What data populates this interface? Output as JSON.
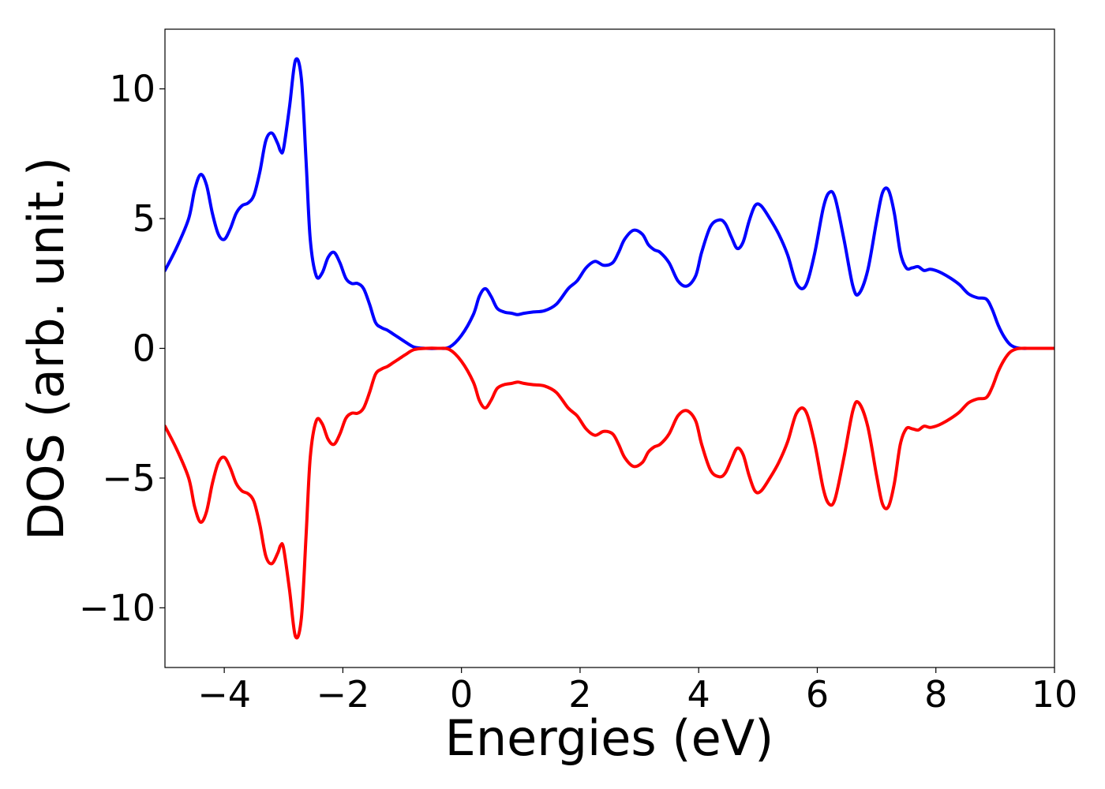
{
  "chart_data": {
    "type": "line",
    "xlabel": "Energies (eV)",
    "ylabel": "DOS (arb. unit.)",
    "xlim": [
      -5,
      10
    ],
    "ylim": [
      -12.3,
      12.3
    ],
    "xticks": [
      -4,
      -2,
      0,
      2,
      4,
      6,
      8,
      10
    ],
    "xtick_labels": [
      "−4",
      "−2",
      "0",
      "2",
      "4",
      "6",
      "8",
      "10"
    ],
    "yticks": [
      -10,
      -5,
      0,
      5,
      10
    ],
    "ytick_labels": [
      "−10",
      "−5",
      "0",
      "5",
      "10"
    ],
    "grid": false,
    "series": [
      {
        "color": "#0000ff",
        "x": [
          -5.0,
          -4.8,
          -4.6,
          -4.5,
          -4.4,
          -4.3,
          -4.2,
          -4.1,
          -4.0,
          -3.9,
          -3.8,
          -3.7,
          -3.6,
          -3.5,
          -3.4,
          -3.3,
          -3.2,
          -3.1,
          -3.05,
          -3.0,
          -2.9,
          -2.8,
          -2.7,
          -2.62,
          -2.55,
          -2.45,
          -2.35,
          -2.25,
          -2.15,
          -2.05,
          -1.95,
          -1.85,
          -1.75,
          -1.65,
          -1.55,
          -1.45,
          -1.35,
          -1.25,
          -1.15,
          -1.05,
          -0.95,
          -0.8,
          -0.6,
          -0.4,
          -0.2,
          0.0,
          0.2,
          0.3,
          0.4,
          0.5,
          0.6,
          0.72,
          0.85,
          0.95,
          1.05,
          1.2,
          1.4,
          1.6,
          1.8,
          1.95,
          2.1,
          2.25,
          2.4,
          2.55,
          2.65,
          2.75,
          2.9,
          3.05,
          3.15,
          3.25,
          3.35,
          3.5,
          3.65,
          3.8,
          3.95,
          4.05,
          4.2,
          4.35,
          4.45,
          4.55,
          4.65,
          4.75,
          4.85,
          4.95,
          5.05,
          5.2,
          5.35,
          5.5,
          5.65,
          5.8,
          5.95,
          6.1,
          6.2,
          6.3,
          6.45,
          6.6,
          6.7,
          6.85,
          7.0,
          7.1,
          7.2,
          7.3,
          7.4,
          7.5,
          7.6,
          7.7,
          7.8,
          7.9,
          8.0,
          8.1,
          8.25,
          8.4,
          8.55,
          8.7,
          8.85,
          8.95,
          9.05,
          9.15,
          9.25,
          9.35,
          9.45,
          9.6,
          9.8,
          10.0
        ],
        "y": [
          3.0,
          3.9,
          5.0,
          6.1,
          6.7,
          6.3,
          5.2,
          4.4,
          4.2,
          4.6,
          5.2,
          5.5,
          5.6,
          5.9,
          6.8,
          8.0,
          8.3,
          7.9,
          7.6,
          7.7,
          9.3,
          11.1,
          10.4,
          7.2,
          4.2,
          2.8,
          2.9,
          3.5,
          3.7,
          3.3,
          2.7,
          2.5,
          2.5,
          2.3,
          1.7,
          1.0,
          0.8,
          0.7,
          0.55,
          0.4,
          0.25,
          0.05,
          0.0,
          0.0,
          0.05,
          0.5,
          1.3,
          2.0,
          2.3,
          2.0,
          1.55,
          1.4,
          1.35,
          1.3,
          1.35,
          1.4,
          1.45,
          1.7,
          2.3,
          2.6,
          3.1,
          3.35,
          3.2,
          3.3,
          3.7,
          4.2,
          4.55,
          4.4,
          4.0,
          3.8,
          3.7,
          3.3,
          2.6,
          2.4,
          2.8,
          3.7,
          4.7,
          4.95,
          4.8,
          4.3,
          3.85,
          4.1,
          4.9,
          5.5,
          5.5,
          5.0,
          4.4,
          3.6,
          2.5,
          2.4,
          3.6,
          5.4,
          6.0,
          5.8,
          4.2,
          2.4,
          2.1,
          3.0,
          4.9,
          6.0,
          6.1,
          5.2,
          3.7,
          3.1,
          3.1,
          3.15,
          3.0,
          3.05,
          3.0,
          2.9,
          2.7,
          2.45,
          2.1,
          1.95,
          1.9,
          1.5,
          0.9,
          0.45,
          0.15,
          0.03,
          0.0,
          0.0,
          0.0,
          0.0
        ]
      },
      {
        "color": "#ff0000",
        "x": [
          -5.0,
          -4.8,
          -4.6,
          -4.5,
          -4.4,
          -4.3,
          -4.2,
          -4.1,
          -4.0,
          -3.9,
          -3.8,
          -3.7,
          -3.6,
          -3.5,
          -3.4,
          -3.3,
          -3.2,
          -3.1,
          -3.05,
          -3.0,
          -2.9,
          -2.8,
          -2.7,
          -2.62,
          -2.55,
          -2.45,
          -2.35,
          -2.25,
          -2.15,
          -2.05,
          -1.95,
          -1.85,
          -1.75,
          -1.65,
          -1.55,
          -1.45,
          -1.35,
          -1.25,
          -1.15,
          -1.05,
          -0.95,
          -0.8,
          -0.6,
          -0.4,
          -0.2,
          0.0,
          0.2,
          0.3,
          0.4,
          0.5,
          0.6,
          0.72,
          0.85,
          0.95,
          1.05,
          1.2,
          1.4,
          1.6,
          1.8,
          1.95,
          2.1,
          2.25,
          2.4,
          2.55,
          2.65,
          2.75,
          2.9,
          3.05,
          3.15,
          3.25,
          3.35,
          3.5,
          3.65,
          3.8,
          3.95,
          4.05,
          4.2,
          4.35,
          4.45,
          4.55,
          4.65,
          4.75,
          4.85,
          4.95,
          5.05,
          5.2,
          5.35,
          5.5,
          5.65,
          5.8,
          5.95,
          6.1,
          6.2,
          6.3,
          6.45,
          6.6,
          6.7,
          6.85,
          7.0,
          7.1,
          7.2,
          7.3,
          7.4,
          7.5,
          7.6,
          7.7,
          7.8,
          7.9,
          8.0,
          8.1,
          8.25,
          8.4,
          8.55,
          8.7,
          8.85,
          8.95,
          9.05,
          9.15,
          9.25,
          9.35,
          9.45,
          9.6,
          9.8,
          10.0
        ],
        "y": [
          -3.0,
          -3.9,
          -5.0,
          -6.1,
          -6.7,
          -6.3,
          -5.2,
          -4.4,
          -4.2,
          -4.6,
          -5.2,
          -5.5,
          -5.6,
          -5.9,
          -6.8,
          -8.0,
          -8.3,
          -7.9,
          -7.6,
          -7.7,
          -9.3,
          -11.1,
          -10.4,
          -7.2,
          -4.2,
          -2.8,
          -2.9,
          -3.5,
          -3.7,
          -3.3,
          -2.7,
          -2.5,
          -2.5,
          -2.3,
          -1.7,
          -1.0,
          -0.8,
          -0.7,
          -0.55,
          -0.4,
          -0.25,
          -0.05,
          0.0,
          0.0,
          -0.05,
          -0.5,
          -1.3,
          -2.0,
          -2.3,
          -2.0,
          -1.55,
          -1.4,
          -1.35,
          -1.3,
          -1.35,
          -1.4,
          -1.45,
          -1.7,
          -2.3,
          -2.6,
          -3.1,
          -3.35,
          -3.2,
          -3.3,
          -3.7,
          -4.2,
          -4.55,
          -4.4,
          -4.0,
          -3.8,
          -3.7,
          -3.3,
          -2.6,
          -2.4,
          -2.8,
          -3.7,
          -4.7,
          -4.95,
          -4.8,
          -4.3,
          -3.85,
          -4.1,
          -4.9,
          -5.5,
          -5.5,
          -5.0,
          -4.4,
          -3.6,
          -2.5,
          -2.4,
          -3.6,
          -5.4,
          -6.0,
          -5.8,
          -4.2,
          -2.4,
          -2.1,
          -3.0,
          -4.9,
          -6.0,
          -6.1,
          -5.2,
          -3.7,
          -3.1,
          -3.1,
          -3.15,
          -3.0,
          -3.05,
          -3.0,
          -2.9,
          -2.7,
          -2.45,
          -2.1,
          -1.95,
          -1.9,
          -1.5,
          -0.9,
          -0.45,
          -0.15,
          -0.03,
          0.0,
          0.0,
          0.0,
          0.0
        ]
      }
    ]
  }
}
